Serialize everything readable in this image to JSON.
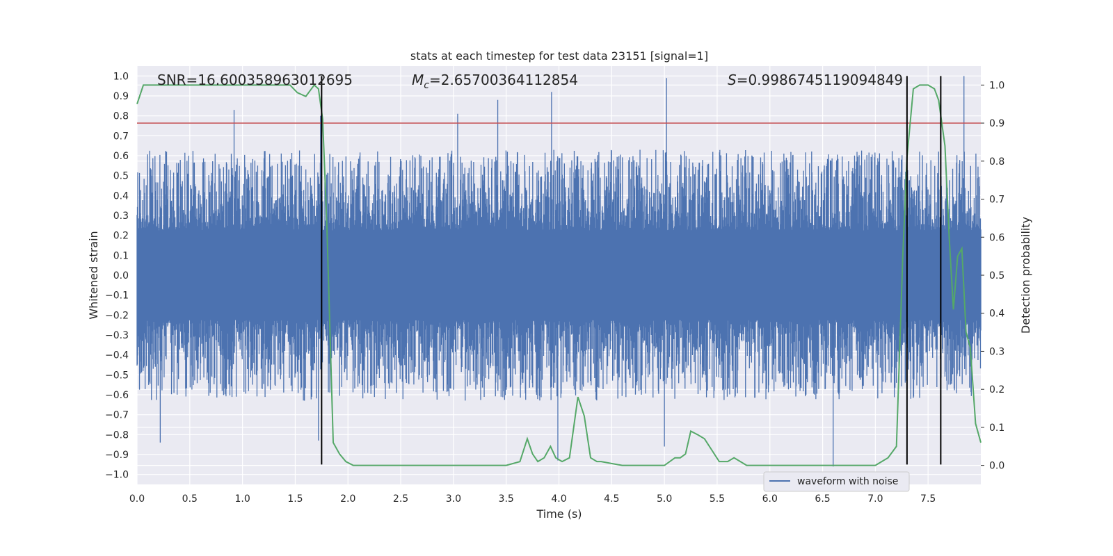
{
  "chart_data": {
    "type": "line",
    "title": "stats at each timestep for test data 23151 [signal=1]",
    "xlabel": "Time (s)",
    "ylabel": "Whitened strain",
    "y2label": "Detection probability",
    "xlim": [
      0.0,
      8.0
    ],
    "ylim": [
      -1.05,
      1.05
    ],
    "y2lim": [
      -0.05,
      1.05
    ],
    "x_ticks": [
      0.0,
      0.5,
      1.0,
      1.5,
      2.0,
      2.5,
      3.0,
      3.5,
      4.0,
      4.5,
      5.0,
      5.5,
      6.0,
      6.5,
      7.0,
      7.5
    ],
    "x_tick_labels": [
      "0.0",
      "0.5",
      "1.0",
      "1.5",
      "2.0",
      "2.5",
      "3.0",
      "3.5",
      "4.0",
      "4.5",
      "5.0",
      "5.5",
      "6.0",
      "6.5",
      "7.0",
      "7.5"
    ],
    "y_ticks": [
      -1.0,
      -0.9,
      -0.8,
      -0.7,
      -0.6,
      -0.5,
      -0.4,
      -0.3,
      -0.2,
      -0.1,
      0.0,
      0.1,
      0.2,
      0.3,
      0.4,
      0.5,
      0.6,
      0.7,
      0.8,
      0.9,
      1.0
    ],
    "y_tick_labels": [
      "−1.0",
      "−0.9",
      "−0.8",
      "−0.7",
      "−0.6",
      "−0.5",
      "−0.4",
      "−0.3",
      "−0.2",
      "−0.1",
      "0.0",
      "0.1",
      "0.2",
      "0.3",
      "0.4",
      "0.5",
      "0.6",
      "0.7",
      "0.8",
      "0.9",
      "1.0"
    ],
    "y2_ticks": [
      0.0,
      0.1,
      0.2,
      0.3,
      0.4,
      0.5,
      0.6,
      0.7,
      0.8,
      0.9,
      1.0
    ],
    "y2_tick_labels": [
      "0.0",
      "0.1",
      "0.2",
      "0.3",
      "0.4",
      "0.5",
      "0.6",
      "0.7",
      "0.8",
      "0.9",
      "1.0"
    ],
    "grid": true,
    "legend": {
      "placement": "lower-right",
      "entries": [
        "waveform with noise"
      ]
    },
    "annotations": {
      "snr": "SNR=16.600358963012695",
      "mc_symbol": "M",
      "mc_sub": "c",
      "mc_value": "=2.65700364112854",
      "s_symbol": "S",
      "s_value": "=0.9986745119094849"
    },
    "threshold_y2": 0.9,
    "vertical_lines_x": [
      1.75,
      7.3,
      7.62
    ],
    "waveform": {
      "name": "waveform with noise",
      "typical_upper": 0.45,
      "typical_lower": -0.45,
      "peaks": [
        {
          "x": 0.92,
          "y": 0.83
        },
        {
          "x": 1.74,
          "y": 0.8
        },
        {
          "x": 3.04,
          "y": 0.81
        },
        {
          "x": 3.42,
          "y": 0.88
        },
        {
          "x": 3.93,
          "y": 0.92
        },
        {
          "x": 5.02,
          "y": 0.99
        },
        {
          "x": 7.84,
          "y": 1.0
        },
        {
          "x": 0.22,
          "y": -0.84
        },
        {
          "x": 1.72,
          "y": -0.83
        },
        {
          "x": 3.99,
          "y": -0.93
        },
        {
          "x": 6.6,
          "y": -0.96
        },
        {
          "x": 5.0,
          "y": -0.86
        }
      ]
    },
    "detection_probability": {
      "name": "detection probability",
      "x": [
        0.0,
        0.06,
        0.2,
        0.5,
        1.0,
        1.45,
        1.52,
        1.6,
        1.68,
        1.72,
        1.76,
        1.8,
        1.86,
        1.92,
        1.98,
        2.05,
        2.1,
        2.5,
        3.0,
        3.3,
        3.5,
        3.63,
        3.7,
        3.75,
        3.8,
        3.86,
        3.92,
        3.97,
        4.03,
        4.1,
        4.18,
        4.24,
        4.3,
        4.36,
        4.4,
        4.6,
        5.0,
        5.1,
        5.15,
        5.2,
        5.25,
        5.32,
        5.38,
        5.45,
        5.52,
        5.6,
        5.66,
        5.72,
        5.78,
        5.84,
        5.9,
        6.0,
        6.5,
        7.0,
        7.12,
        7.2,
        7.26,
        7.3,
        7.36,
        7.42,
        7.5,
        7.56,
        7.6,
        7.66,
        7.7,
        7.74,
        7.78,
        7.82,
        7.86,
        7.9,
        7.95,
        8.0
      ],
      "y": [
        0.95,
        1.0,
        1.0,
        1.0,
        1.0,
        1.0,
        0.98,
        0.97,
        1.0,
        0.99,
        0.91,
        0.63,
        0.06,
        0.03,
        0.01,
        0.0,
        0.0,
        0.0,
        0.0,
        0.0,
        0.0,
        0.01,
        0.07,
        0.03,
        0.01,
        0.02,
        0.05,
        0.02,
        0.01,
        0.02,
        0.18,
        0.13,
        0.02,
        0.01,
        0.01,
        0.0,
        0.0,
        0.02,
        0.02,
        0.03,
        0.09,
        0.08,
        0.07,
        0.04,
        0.01,
        0.01,
        0.02,
        0.01,
        0.0,
        0.0,
        0.0,
        0.0,
        0.0,
        0.0,
        0.02,
        0.05,
        0.55,
        0.81,
        0.99,
        1.0,
        1.0,
        0.99,
        0.96,
        0.84,
        0.6,
        0.41,
        0.55,
        0.57,
        0.35,
        0.31,
        0.11,
        0.06
      ]
    },
    "colors": {
      "background": "#eaeaf2",
      "grid": "#ffffff",
      "waveform": "#4c72b0",
      "probability": "#55a868",
      "threshold": "#c44e52",
      "vlines": "#000000"
    }
  }
}
